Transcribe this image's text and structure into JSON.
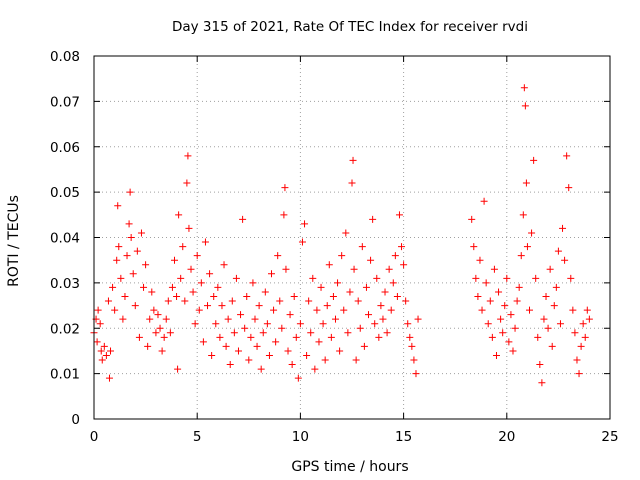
{
  "chart_data": {
    "type": "scatter",
    "title": "Day 315 of 2021, Rate Of TEC Index for receiver rvdi",
    "xlabel": "GPS time / hours",
    "ylabel": "ROTI / TECUs",
    "xlim": [
      0,
      25
    ],
    "ylim": [
      0,
      0.08
    ],
    "xticks": [
      0,
      5,
      10,
      15,
      20,
      25
    ],
    "yticks": [
      0,
      0.01,
      0.02,
      0.03,
      0.04,
      0.05,
      0.06,
      0.07,
      0.08
    ],
    "xtick_labels": [
      "0",
      "5",
      "10",
      "15",
      "20",
      "25"
    ],
    "ytick_labels": [
      "0",
      "0.01",
      "0.02",
      "0.03",
      "0.04",
      "0.05",
      "0.06",
      "0.07",
      "0.08"
    ],
    "grid": true,
    "marker": "+",
    "color": "#ff0000",
    "series": [
      {
        "points": [
          [
            0.0,
            0.019
          ],
          [
            0.1,
            0.022
          ],
          [
            0.15,
            0.017
          ],
          [
            0.2,
            0.024
          ],
          [
            0.3,
            0.021
          ],
          [
            0.35,
            0.015
          ],
          [
            0.4,
            0.013
          ],
          [
            0.5,
            0.016
          ],
          [
            0.6,
            0.014
          ],
          [
            0.7,
            0.026
          ],
          [
            0.75,
            0.009
          ],
          [
            0.8,
            0.015
          ],
          [
            0.9,
            0.029
          ],
          [
            1.0,
            0.024
          ],
          [
            1.1,
            0.035
          ],
          [
            1.15,
            0.047
          ],
          [
            1.2,
            0.038
          ],
          [
            1.3,
            0.031
          ],
          [
            1.4,
            0.022
          ],
          [
            1.5,
            0.027
          ],
          [
            1.6,
            0.036
          ],
          [
            1.7,
            0.043
          ],
          [
            1.75,
            0.05
          ],
          [
            1.8,
            0.04
          ],
          [
            1.9,
            0.032
          ],
          [
            2.0,
            0.025
          ],
          [
            2.1,
            0.037
          ],
          [
            2.2,
            0.018
          ],
          [
            2.3,
            0.041
          ],
          [
            2.4,
            0.029
          ],
          [
            2.5,
            0.034
          ],
          [
            2.6,
            0.016
          ],
          [
            2.7,
            0.022
          ],
          [
            2.8,
            0.028
          ],
          [
            2.9,
            0.024
          ],
          [
            3.0,
            0.019
          ],
          [
            3.1,
            0.023
          ],
          [
            3.2,
            0.02
          ],
          [
            3.3,
            0.015
          ],
          [
            3.4,
            0.018
          ],
          [
            3.5,
            0.022
          ],
          [
            3.6,
            0.026
          ],
          [
            3.7,
            0.019
          ],
          [
            3.8,
            0.029
          ],
          [
            3.9,
            0.035
          ],
          [
            4.0,
            0.027
          ],
          [
            4.05,
            0.011
          ],
          [
            4.1,
            0.045
          ],
          [
            4.2,
            0.031
          ],
          [
            4.3,
            0.038
          ],
          [
            4.4,
            0.026
          ],
          [
            4.5,
            0.052
          ],
          [
            4.55,
            0.058
          ],
          [
            4.6,
            0.042
          ],
          [
            4.7,
            0.033
          ],
          [
            4.8,
            0.028
          ],
          [
            4.9,
            0.021
          ],
          [
            5.0,
            0.036
          ],
          [
            5.1,
            0.024
          ],
          [
            5.2,
            0.03
          ],
          [
            5.3,
            0.017
          ],
          [
            5.4,
            0.039
          ],
          [
            5.5,
            0.025
          ],
          [
            5.6,
            0.032
          ],
          [
            5.7,
            0.014
          ],
          [
            5.8,
            0.027
          ],
          [
            5.9,
            0.021
          ],
          [
            6.0,
            0.029
          ],
          [
            6.1,
            0.018
          ],
          [
            6.2,
            0.025
          ],
          [
            6.3,
            0.034
          ],
          [
            6.4,
            0.016
          ],
          [
            6.5,
            0.022
          ],
          [
            6.6,
            0.012
          ],
          [
            6.7,
            0.026
          ],
          [
            6.8,
            0.019
          ],
          [
            6.9,
            0.031
          ],
          [
            7.0,
            0.015
          ],
          [
            7.1,
            0.023
          ],
          [
            7.2,
            0.044
          ],
          [
            7.3,
            0.02
          ],
          [
            7.4,
            0.027
          ],
          [
            7.5,
            0.013
          ],
          [
            7.6,
            0.018
          ],
          [
            7.7,
            0.03
          ],
          [
            7.8,
            0.022
          ],
          [
            7.9,
            0.016
          ],
          [
            8.0,
            0.025
          ],
          [
            8.1,
            0.011
          ],
          [
            8.2,
            0.019
          ],
          [
            8.3,
            0.028
          ],
          [
            8.4,
            0.021
          ],
          [
            8.5,
            0.014
          ],
          [
            8.6,
            0.032
          ],
          [
            8.7,
            0.024
          ],
          [
            8.8,
            0.017
          ],
          [
            8.9,
            0.036
          ],
          [
            9.0,
            0.026
          ],
          [
            9.1,
            0.02
          ],
          [
            9.2,
            0.045
          ],
          [
            9.25,
            0.051
          ],
          [
            9.3,
            0.033
          ],
          [
            9.4,
            0.015
          ],
          [
            9.5,
            0.023
          ],
          [
            9.6,
            0.012
          ],
          [
            9.7,
            0.027
          ],
          [
            9.8,
            0.018
          ],
          [
            9.9,
            0.009
          ],
          [
            10.0,
            0.021
          ],
          [
            10.1,
            0.039
          ],
          [
            10.2,
            0.043
          ],
          [
            10.3,
            0.014
          ],
          [
            10.4,
            0.026
          ],
          [
            10.5,
            0.019
          ],
          [
            10.6,
            0.031
          ],
          [
            10.7,
            0.011
          ],
          [
            10.8,
            0.024
          ],
          [
            10.9,
            0.017
          ],
          [
            11.0,
            0.029
          ],
          [
            11.1,
            0.021
          ],
          [
            11.2,
            0.013
          ],
          [
            11.3,
            0.025
          ],
          [
            11.4,
            0.034
          ],
          [
            11.5,
            0.018
          ],
          [
            11.6,
            0.027
          ],
          [
            11.7,
            0.022
          ],
          [
            11.8,
            0.03
          ],
          [
            11.9,
            0.015
          ],
          [
            12.0,
            0.036
          ],
          [
            12.1,
            0.024
          ],
          [
            12.2,
            0.041
          ],
          [
            12.3,
            0.019
          ],
          [
            12.4,
            0.028
          ],
          [
            12.5,
            0.052
          ],
          [
            12.55,
            0.057
          ],
          [
            12.6,
            0.033
          ],
          [
            12.7,
            0.013
          ],
          [
            12.8,
            0.026
          ],
          [
            12.9,
            0.02
          ],
          [
            13.0,
            0.038
          ],
          [
            13.1,
            0.016
          ],
          [
            13.2,
            0.029
          ],
          [
            13.3,
            0.023
          ],
          [
            13.4,
            0.035
          ],
          [
            13.5,
            0.044
          ],
          [
            13.6,
            0.021
          ],
          [
            13.7,
            0.031
          ],
          [
            13.8,
            0.018
          ],
          [
            13.9,
            0.025
          ],
          [
            14.0,
            0.022
          ],
          [
            14.1,
            0.028
          ],
          [
            14.2,
            0.019
          ],
          [
            14.3,
            0.033
          ],
          [
            14.4,
            0.024
          ],
          [
            14.5,
            0.03
          ],
          [
            14.6,
            0.036
          ],
          [
            14.7,
            0.027
          ],
          [
            14.8,
            0.045
          ],
          [
            14.9,
            0.038
          ],
          [
            15.0,
            0.034
          ],
          [
            15.1,
            0.026
          ],
          [
            15.2,
            0.021
          ],
          [
            15.3,
            0.018
          ],
          [
            15.4,
            0.016
          ],
          [
            15.5,
            0.013
          ],
          [
            15.6,
            0.01
          ],
          [
            15.7,
            0.022
          ],
          [
            18.3,
            0.044
          ],
          [
            18.4,
            0.038
          ],
          [
            18.5,
            0.031
          ],
          [
            18.6,
            0.027
          ],
          [
            18.7,
            0.035
          ],
          [
            18.8,
            0.024
          ],
          [
            18.9,
            0.048
          ],
          [
            19.0,
            0.03
          ],
          [
            19.1,
            0.021
          ],
          [
            19.2,
            0.026
          ],
          [
            19.3,
            0.018
          ],
          [
            19.4,
            0.033
          ],
          [
            19.5,
            0.014
          ],
          [
            19.6,
            0.028
          ],
          [
            19.7,
            0.022
          ],
          [
            19.8,
            0.019
          ],
          [
            19.9,
            0.025
          ],
          [
            20.0,
            0.031
          ],
          [
            20.1,
            0.017
          ],
          [
            20.2,
            0.023
          ],
          [
            20.3,
            0.015
          ],
          [
            20.4,
            0.02
          ],
          [
            20.5,
            0.026
          ],
          [
            20.6,
            0.029
          ],
          [
            20.7,
            0.036
          ],
          [
            20.8,
            0.045
          ],
          [
            20.85,
            0.073
          ],
          [
            20.9,
            0.069
          ],
          [
            20.95,
            0.052
          ],
          [
            21.0,
            0.038
          ],
          [
            21.1,
            0.024
          ],
          [
            21.2,
            0.041
          ],
          [
            21.3,
            0.057
          ],
          [
            21.4,
            0.031
          ],
          [
            21.5,
            0.018
          ],
          [
            21.6,
            0.012
          ],
          [
            21.7,
            0.008
          ],
          [
            21.8,
            0.022
          ],
          [
            21.9,
            0.027
          ],
          [
            22.0,
            0.02
          ],
          [
            22.1,
            0.033
          ],
          [
            22.2,
            0.016
          ],
          [
            22.3,
            0.025
          ],
          [
            22.4,
            0.029
          ],
          [
            22.5,
            0.037
          ],
          [
            22.6,
            0.021
          ],
          [
            22.7,
            0.042
          ],
          [
            22.8,
            0.035
          ],
          [
            22.9,
            0.058
          ],
          [
            23.0,
            0.051
          ],
          [
            23.1,
            0.031
          ],
          [
            23.2,
            0.024
          ],
          [
            23.3,
            0.019
          ],
          [
            23.4,
            0.013
          ],
          [
            23.5,
            0.01
          ],
          [
            23.6,
            0.016
          ],
          [
            23.7,
            0.021
          ],
          [
            23.8,
            0.018
          ],
          [
            23.9,
            0.024
          ],
          [
            24.0,
            0.022
          ]
        ]
      }
    ]
  }
}
